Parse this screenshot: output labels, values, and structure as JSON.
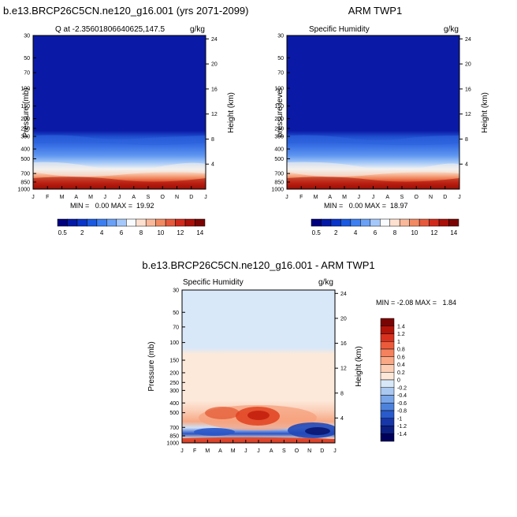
{
  "chart_data": [
    {
      "type": "heatmap",
      "title": "b.e13.BRCP26C5CN.ne120_g16.001 (yrs 2071-2099)",
      "subtitle_left": "Q at -2.35601806640625,147.5",
      "units": "g/kg",
      "ylabel": "Pressure (mb)",
      "ylabel_right": "Height (km)",
      "x_ticks": [
        "J",
        "F",
        "M",
        "A",
        "M",
        "J",
        "J",
        "A",
        "S",
        "O",
        "N",
        "D",
        "J"
      ],
      "y_ticks": [
        "30",
        "50",
        "70",
        "100",
        "150",
        "200",
        "250",
        "300",
        "400",
        "500",
        "700",
        "850",
        "1000"
      ],
      "y_ticks_right": [
        "24",
        "20",
        "16",
        "12",
        "8",
        "4"
      ],
      "stats": "MIN =   0.00 MAX =  19.92",
      "levels": [
        "0.5",
        "2",
        "4",
        "6",
        "8",
        "10",
        "12",
        "14"
      ],
      "colors": [
        "#00007f",
        "#0319a5",
        "#0a35c8",
        "#1b5ae0",
        "#3d7ff0",
        "#6aa0f6",
        "#a5c8fb",
        "#f9fcff",
        "#fde0cf",
        "#f9b89a",
        "#f18a62",
        "#e55a3c",
        "#d02a1c",
        "#a81009",
        "#7a0403"
      ]
    },
    {
      "type": "heatmap",
      "title": "ARM TWP1",
      "subtitle_left": "Specific Humidity",
      "units": "g/kg",
      "ylabel": "pressure level",
      "ylabel_right": "Height (km)",
      "x_ticks": [
        "J",
        "F",
        "M",
        "A",
        "M",
        "J",
        "J",
        "A",
        "S",
        "O",
        "N",
        "D",
        "J"
      ],
      "y_ticks": [
        "30",
        "50",
        "70",
        "100",
        "150",
        "200",
        "250",
        "300",
        "400",
        "500",
        "700",
        "850",
        "1000"
      ],
      "y_ticks_right": [
        "24",
        "20",
        "16",
        "12",
        "8",
        "4"
      ],
      "stats": "MIN =   0.00 MAX =  18.97",
      "levels": [
        "0.5",
        "2",
        "4",
        "6",
        "8",
        "10",
        "12",
        "14"
      ]
    },
    {
      "type": "heatmap",
      "title": "b.e13.BRCP26C5CN.ne120_g16.001 - ARM TWP1",
      "subtitle_left": "Specific Humidity",
      "units": "g/kg",
      "ylabel": "Pressure (mb)",
      "ylabel_right": "Height (km)",
      "x_ticks": [
        "J",
        "F",
        "M",
        "A",
        "M",
        "J",
        "J",
        "A",
        "S",
        "O",
        "N",
        "D",
        "J"
      ],
      "y_ticks": [
        "30",
        "50",
        "70",
        "100",
        "150",
        "200",
        "250",
        "300",
        "400",
        "500",
        "700",
        "850",
        "1000"
      ],
      "y_ticks_right": [
        "24",
        "20",
        "16",
        "12",
        "8",
        "4"
      ],
      "stats": "MIN = -2.08 MAX =   1.84",
      "levels": [
        "1.4",
        "1.2",
        "1",
        "0.8",
        "0.6",
        "0.4",
        "0.2",
        "0",
        "-0.2",
        "-0.4",
        "-0.6",
        "-0.8",
        "-1",
        "-1.2",
        "-1.4"
      ],
      "colors": [
        "#7a0403",
        "#b21409",
        "#d8321e",
        "#ec5a3c",
        "#f5825e",
        "#f9a985",
        "#fccfb4",
        "#fde8d8",
        "#d8e8f8",
        "#aac8f0",
        "#7aa6e8",
        "#4d82dc",
        "#2a5bcc",
        "#1737a8",
        "#0b1e82",
        "#00005c"
      ]
    }
  ]
}
